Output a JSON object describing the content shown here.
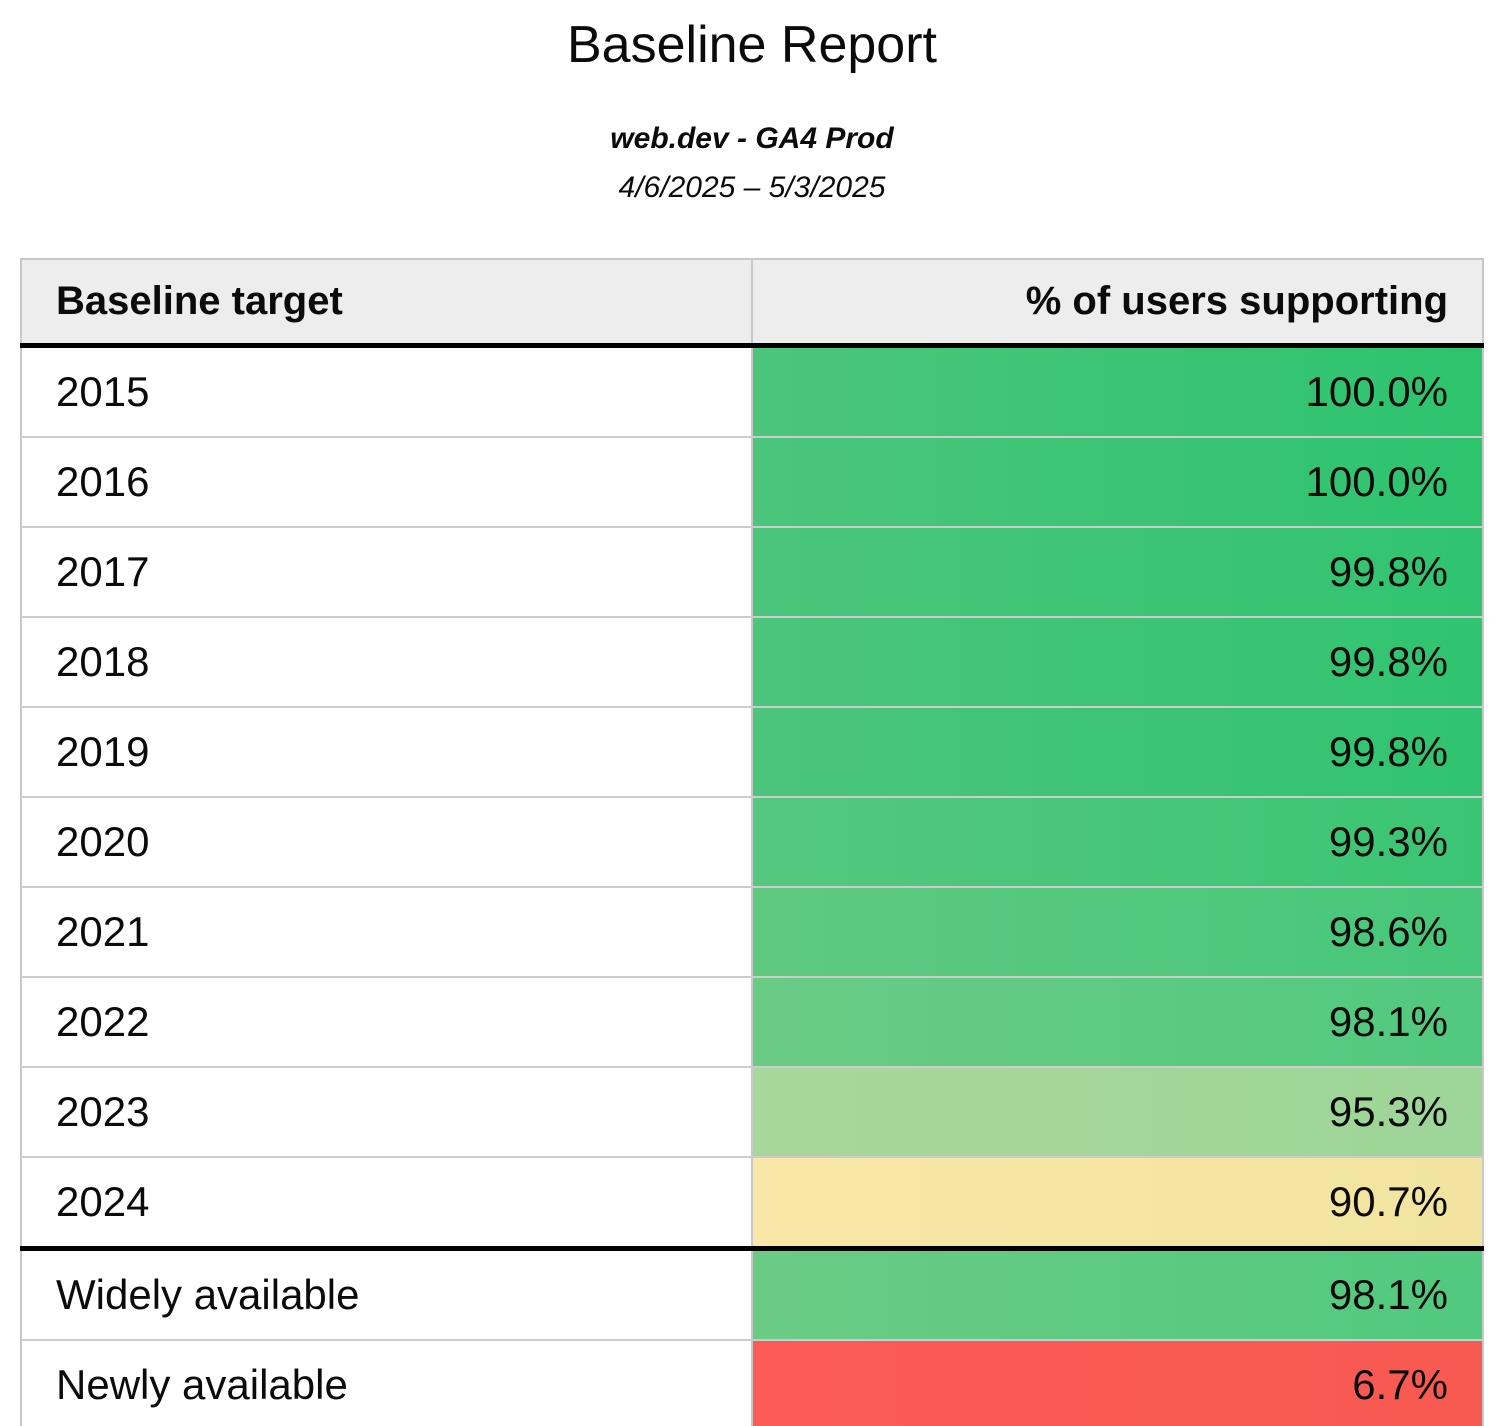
{
  "header": {
    "title": "Baseline Report",
    "subtitle": "web.dev - GA4 Prod",
    "date_range": "4/6/2025 – 5/3/2025"
  },
  "table": {
    "columns": [
      {
        "label": "Baseline target"
      },
      {
        "label": "% of users supporting"
      }
    ],
    "rows": [
      {
        "target": "2015",
        "percent": "100.0%",
        "color_left": "#4BC57C",
        "color_right": "#2DC46E",
        "section_end": false
      },
      {
        "target": "2016",
        "percent": "100.0%",
        "color_left": "#4BC57C",
        "color_right": "#2DC46E",
        "section_end": false
      },
      {
        "target": "2017",
        "percent": "99.8%",
        "color_left": "#4BC57B",
        "color_right": "#30C470",
        "section_end": false
      },
      {
        "target": "2018",
        "percent": "99.8%",
        "color_left": "#4BC57B",
        "color_right": "#30C470",
        "section_end": false
      },
      {
        "target": "2019",
        "percent": "99.8%",
        "color_left": "#4BC57B",
        "color_right": "#30C470",
        "section_end": false
      },
      {
        "target": "2020",
        "percent": "99.3%",
        "color_left": "#55C77F",
        "color_right": "#3AC573",
        "section_end": false
      },
      {
        "target": "2021",
        "percent": "98.6%",
        "color_left": "#60C981",
        "color_right": "#46C77A",
        "section_end": false
      },
      {
        "target": "2022",
        "percent": "98.1%",
        "color_left": "#6ACB85",
        "color_right": "#51C97E",
        "section_end": false
      },
      {
        "target": "2023",
        "percent": "95.3%",
        "color_left": "#A8D79B",
        "color_right": "#9ED598",
        "section_end": false
      },
      {
        "target": "2024",
        "percent": "90.7%",
        "color_left": "#F8E7A7",
        "color_right": "#F2E4A0",
        "section_end": true
      },
      {
        "target": "Widely available",
        "percent": "98.1%",
        "color_left": "#6ACB85",
        "color_right": "#51C97E",
        "section_end": false
      },
      {
        "target": "Newly available",
        "percent": "6.7%",
        "color_left": "#FB5B54",
        "color_right": "#F85951",
        "section_end": false
      }
    ]
  },
  "colors": {
    "header_bg": "#EDEDED",
    "grid_line": "#C8C8C8",
    "section_divider": "#000000",
    "good": "#2DC46E",
    "warn": "#F8E7A7",
    "bad": "#FB5B54"
  }
}
